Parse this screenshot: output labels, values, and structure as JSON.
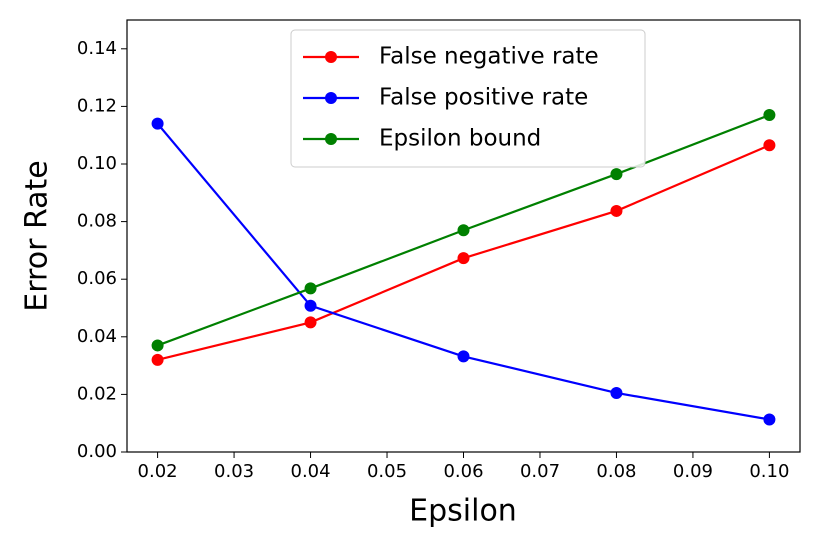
{
  "chart_data": {
    "type": "line",
    "x_label": "Epsilon",
    "y_label": "Error Rate",
    "x": [
      0.02,
      0.04,
      0.06,
      0.08,
      0.1
    ],
    "series": [
      {
        "name": "False negative rate",
        "color": "#ff0000",
        "values": [
          0.032,
          0.045,
          0.0673,
          0.0837,
          0.1065
        ]
      },
      {
        "name": "False positive rate",
        "color": "#0000ff",
        "values": [
          0.114,
          0.0508,
          0.0332,
          0.0205,
          0.0113
        ]
      },
      {
        "name": "Epsilon bound",
        "color": "#008000",
        "values": [
          0.037,
          0.0568,
          0.077,
          0.0965,
          0.117
        ]
      }
    ],
    "xlim": [
      0.016,
      0.104
    ],
    "xticks": [
      0.02,
      0.03,
      0.04,
      0.05,
      0.06,
      0.07,
      0.08,
      0.09,
      {
        "value": 0.1,
        "label": "0.10"
      }
    ],
    "ylim": [
      0,
      0.15
    ],
    "yticks": [
      {
        "value": 0,
        "label": "0.00"
      },
      0.02,
      0.04,
      0.06,
      0.08,
      {
        "value": 0.1,
        "label": "0.10"
      },
      0.12,
      0.14
    ],
    "legend": "upper center"
  }
}
